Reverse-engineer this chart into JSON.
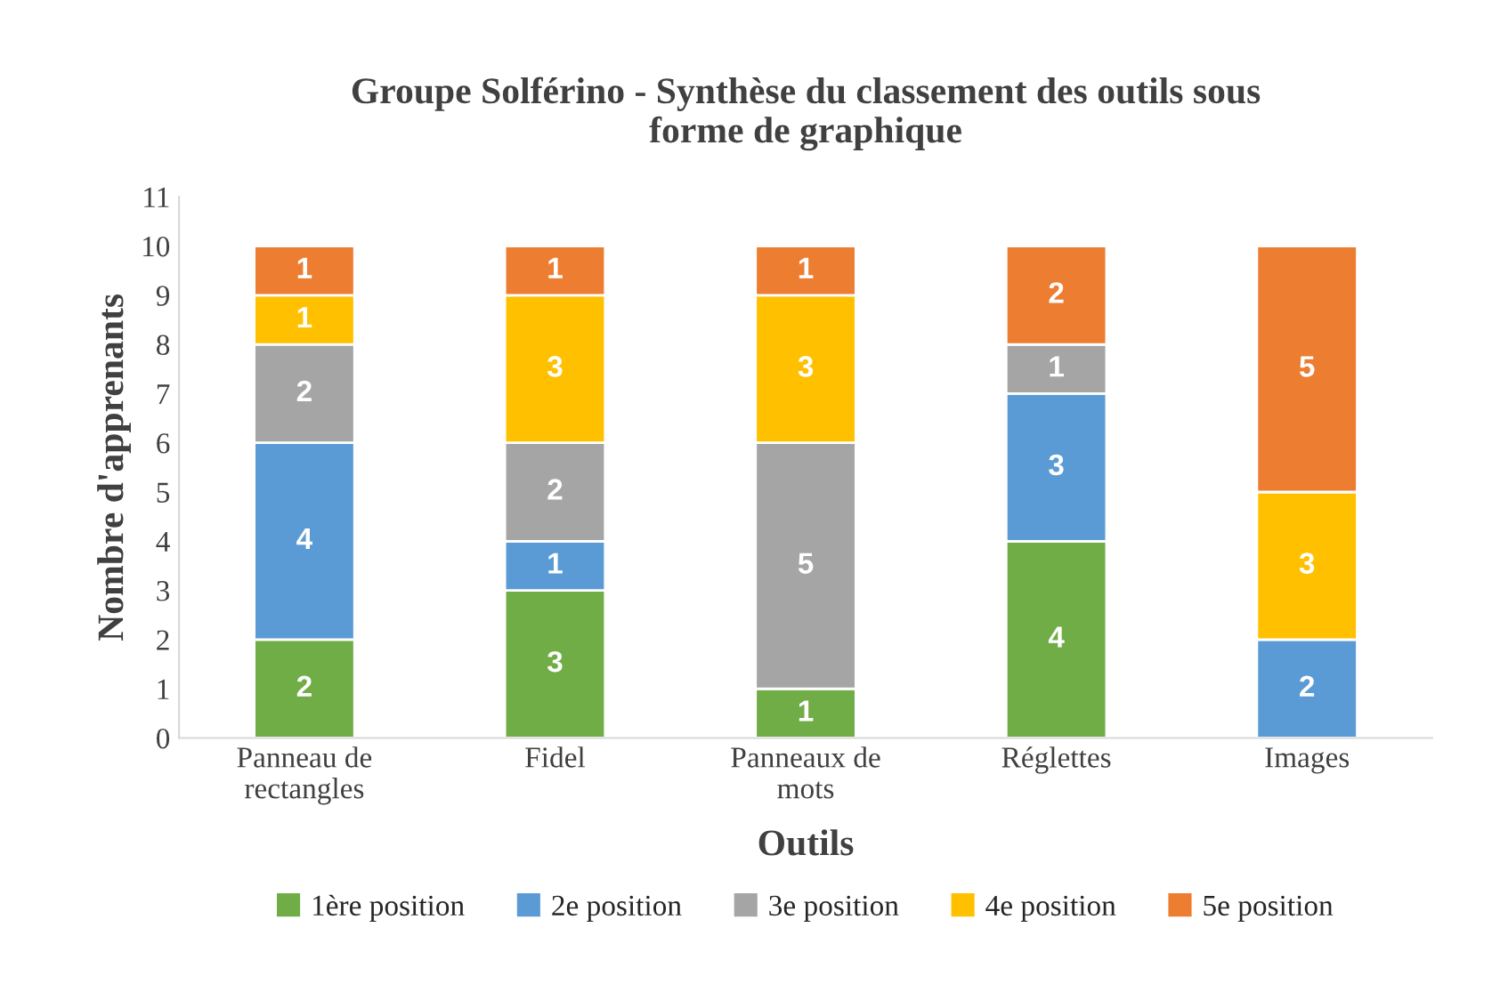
{
  "chart_data": {
    "type": "bar",
    "stacked": true,
    "title": "Groupe Solférino - Synthèse du classement des outils sous\nforme de graphique",
    "xlabel": "Outils",
    "ylabel": "Nombre d'apprenants",
    "categories": [
      "Panneau de\nrectangles",
      "Fidel",
      "Panneaux de\nmots",
      "Réglettes",
      "Images"
    ],
    "series": [
      {
        "name": "1ère position",
        "color": "#70ad47",
        "values": [
          2,
          3,
          1,
          4,
          0
        ],
        "value_labels": [
          "2",
          "3",
          "1",
          "4",
          null
        ]
      },
      {
        "name": "2e position",
        "color": "#5b9bd5",
        "values": [
          4,
          1,
          0,
          3,
          2
        ],
        "value_labels": [
          "4",
          "1",
          null,
          "3",
          "2"
        ]
      },
      {
        "name": "3e position",
        "color": "#a5a5a5",
        "values": [
          2,
          2,
          5,
          1,
          0
        ],
        "value_labels": [
          "2",
          "2",
          "5",
          "1",
          null
        ]
      },
      {
        "name": "4e position",
        "color": "#ffc000",
        "values": [
          1,
          3,
          3,
          0,
          3
        ],
        "value_labels": [
          "1",
          "3",
          "3",
          null,
          "3"
        ]
      },
      {
        "name": "5e position",
        "color": "#ed7d31",
        "values": [
          1,
          1,
          1,
          2,
          5
        ],
        "value_labels": [
          "1",
          "1",
          "1",
          "2",
          "5"
        ]
      }
    ],
    "ylim": [
      0,
      11
    ],
    "yticks": [
      0,
      1,
      2,
      3,
      4,
      5,
      6,
      7,
      8,
      9,
      10,
      11
    ],
    "grid": false,
    "legend": "bottom"
  }
}
